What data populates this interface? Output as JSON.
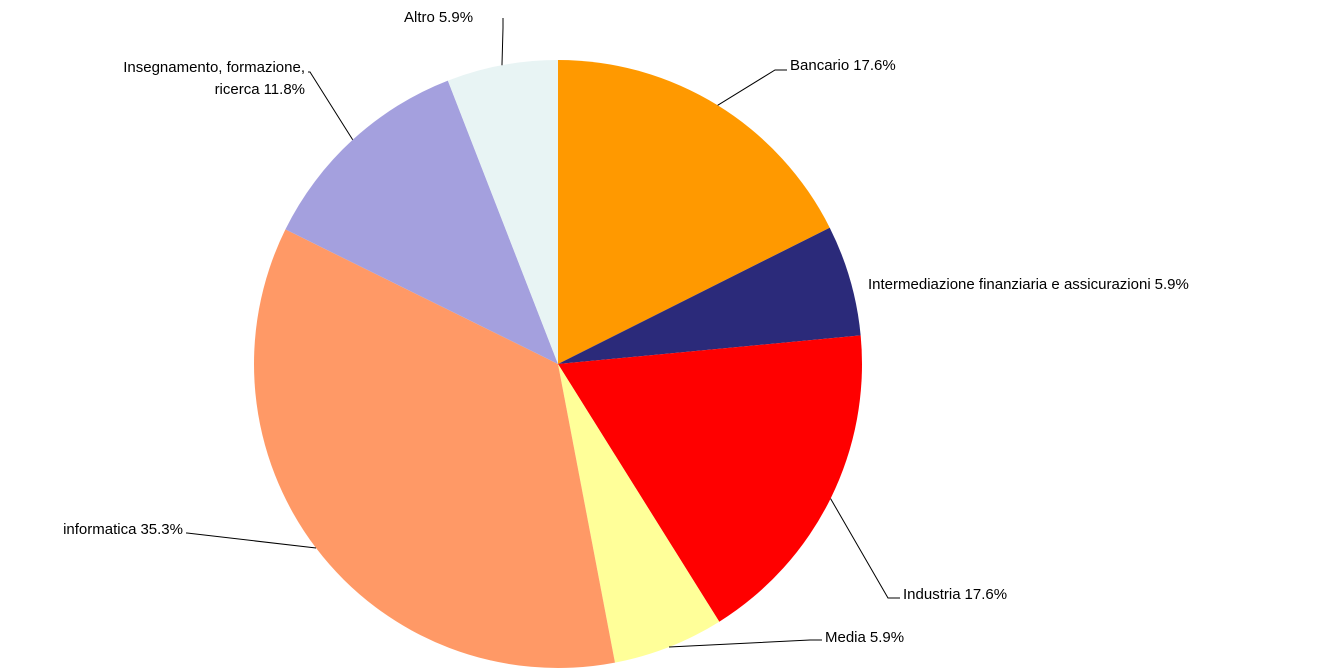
{
  "chart_data": {
    "type": "pie",
    "categories": [
      "Bancario",
      "Intermediazione finanziaria e assicurazioni",
      "Industria",
      "Media",
      "informatica",
      "Insegnamento, formazione, ricerca",
      "Altro"
    ],
    "values": [
      17.6,
      5.9,
      17.6,
      5.9,
      35.3,
      11.8,
      5.9
    ],
    "value_labels": [
      "17.6%",
      "5.9%",
      "17.6%",
      "5.9%",
      "35.3%",
      "11.8%",
      "5.9%"
    ],
    "colors": [
      "#ff9900",
      "#2b2a7a",
      "#ff0000",
      "#ffff99",
      "#ff9966",
      "#a4a0de",
      "#e8f4f4"
    ]
  }
}
